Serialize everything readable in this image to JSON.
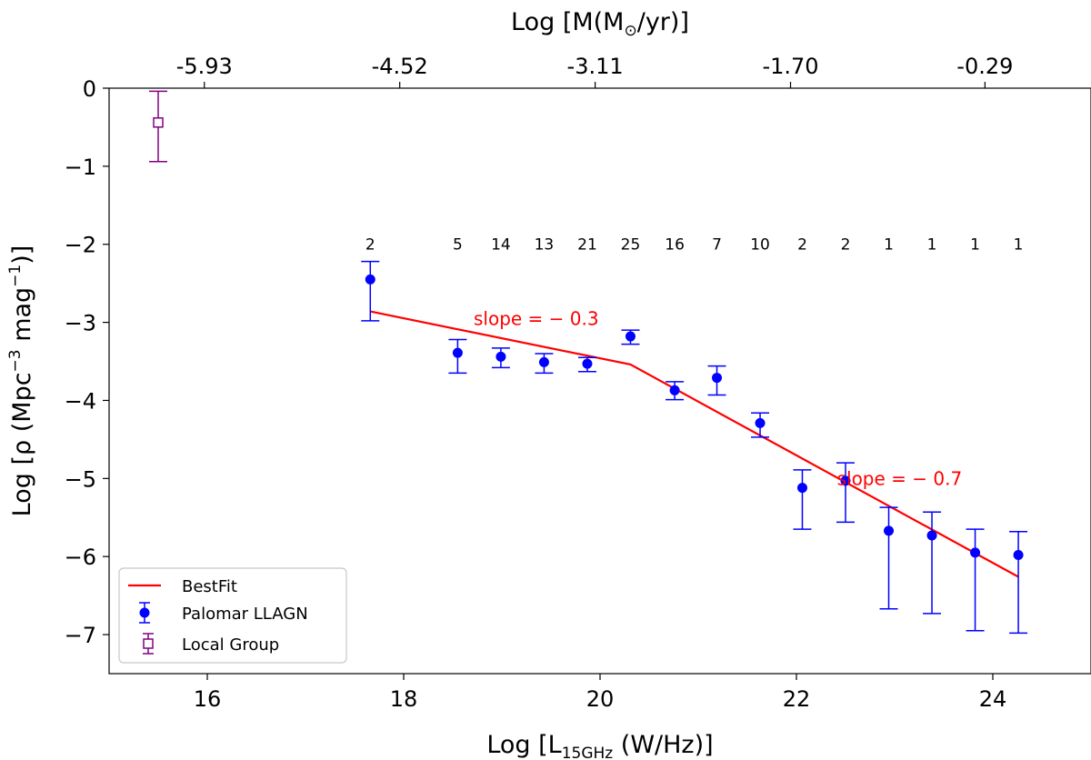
{
  "chart_data": {
    "type": "scatter",
    "xlabel": {
      "main": "Log [L",
      "sub": "15GHz",
      "tail": " (W/Hz)]"
    },
    "ylabel": {
      "main": "Log [ρ (Mpc",
      "sup1": "−3",
      "mid": " mag",
      "sup2": "−1",
      "tail": ")]"
    },
    "top_xlabel": {
      "main": "Log [M(M",
      "sub": "⊙",
      "tail": "/yr)]"
    },
    "xlim": [
      15.0,
      25.0
    ],
    "ylim": [
      -7.5,
      0.0
    ],
    "x_ticks": [
      16,
      18,
      20,
      22,
      24
    ],
    "x_tick_labels": [
      "16",
      "18",
      "20",
      "22",
      "24"
    ],
    "y_ticks": [
      0,
      -1,
      -2,
      -3,
      -4,
      -5,
      -6,
      -7
    ],
    "y_tick_labels": [
      "0",
      "−1",
      "−2",
      "−3",
      "−4",
      "−5",
      "−6",
      "−7"
    ],
    "top_ticks": [
      {
        "x": 15.97,
        "label": "-5.93"
      },
      {
        "x": 17.96,
        "label": "-4.52"
      },
      {
        "x": 19.95,
        "label": "-3.11"
      },
      {
        "x": 21.94,
        "label": "-1.70"
      },
      {
        "x": 23.92,
        "label": "-0.29"
      }
    ],
    "series": [
      {
        "name": "Palomar LLAGN",
        "color": "#0000ff",
        "marker": "filled-circle",
        "points": [
          {
            "x": 17.66,
            "y": -2.45,
            "err_low": 0.53,
            "err_high": 0.23
          },
          {
            "x": 18.55,
            "y": -3.39,
            "err_low": 0.26,
            "err_high": 0.17
          },
          {
            "x": 18.99,
            "y": -3.44,
            "err_low": 0.14,
            "err_high": 0.11
          },
          {
            "x": 19.43,
            "y": -3.51,
            "err_low": 0.14,
            "err_high": 0.11
          },
          {
            "x": 19.87,
            "y": -3.53,
            "err_low": 0.1,
            "err_high": 0.08
          },
          {
            "x": 20.31,
            "y": -3.18,
            "err_low": 0.1,
            "err_high": 0.08
          },
          {
            "x": 20.76,
            "y": -3.87,
            "err_low": 0.12,
            "err_high": 0.11
          },
          {
            "x": 21.19,
            "y": -3.71,
            "err_low": 0.22,
            "err_high": 0.15
          },
          {
            "x": 21.63,
            "y": -4.29,
            "err_low": 0.18,
            "err_high": 0.13
          },
          {
            "x": 22.06,
            "y": -5.12,
            "err_low": 0.53,
            "err_high": 0.23
          },
          {
            "x": 22.5,
            "y": -5.03,
            "err_low": 0.53,
            "err_high": 0.23
          },
          {
            "x": 22.94,
            "y": -5.67,
            "err_low": 1.0,
            "err_high": 0.3
          },
          {
            "x": 23.38,
            "y": -5.73,
            "err_low": 1.0,
            "err_high": 0.3
          },
          {
            "x": 23.82,
            "y": -5.95,
            "err_low": 1.0,
            "err_high": 0.3
          },
          {
            "x": 24.26,
            "y": -5.98,
            "err_low": 1.0,
            "err_high": 0.3
          }
        ]
      },
      {
        "name": "Local Group",
        "color": "#800080",
        "marker": "open-square",
        "points": [
          {
            "x": 15.5,
            "y": -0.44,
            "err_low": 0.5,
            "err_high": 0.4
          }
        ]
      },
      {
        "name": "BestFit",
        "color": "#ff0000",
        "marker": "line",
        "points": [
          {
            "x": 17.66,
            "y": -2.86
          },
          {
            "x": 20.31,
            "y": -3.54
          },
          {
            "x": 24.26,
            "y": -6.26
          }
        ]
      }
    ],
    "counts": [
      {
        "x": 17.66,
        "label": "2"
      },
      {
        "x": 18.55,
        "label": "5"
      },
      {
        "x": 18.99,
        "label": "14"
      },
      {
        "x": 19.43,
        "label": "13"
      },
      {
        "x": 19.87,
        "label": "21"
      },
      {
        "x": 20.31,
        "label": "25"
      },
      {
        "x": 20.76,
        "label": "16"
      },
      {
        "x": 21.19,
        "label": "7"
      },
      {
        "x": 21.63,
        "label": "10"
      },
      {
        "x": 22.06,
        "label": "2"
      },
      {
        "x": 22.5,
        "label": "2"
      },
      {
        "x": 22.94,
        "label": "1"
      },
      {
        "x": 23.38,
        "label": "1"
      },
      {
        "x": 23.82,
        "label": "1"
      },
      {
        "x": 24.26,
        "label": "1"
      }
    ],
    "counts_y": -2.0,
    "annotations": [
      {
        "text": "slope = − 0.3",
        "x": 19.35,
        "y": -2.95
      },
      {
        "text": "slope = − 0.7",
        "x": 23.05,
        "y": -5.0
      }
    ],
    "legend": {
      "position": "lower-left",
      "entries": [
        {
          "label": "BestFit",
          "series": "BestFit"
        },
        {
          "label": "Palomar LLAGN",
          "series": "Palomar LLAGN"
        },
        {
          "label": "Local Group",
          "series": "Local Group"
        }
      ]
    }
  }
}
